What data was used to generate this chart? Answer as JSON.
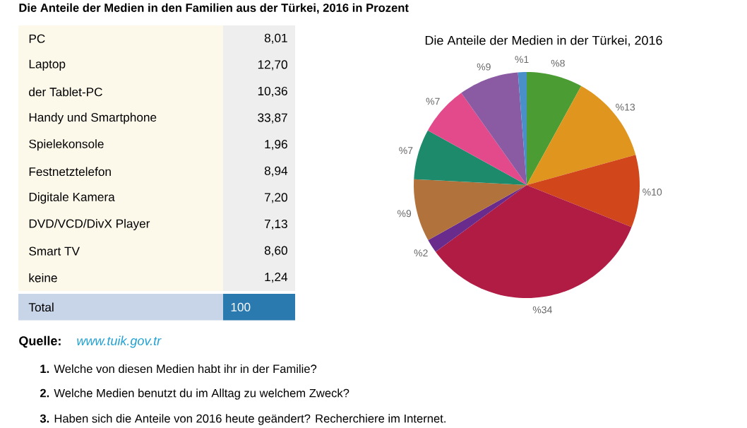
{
  "chart_data": [
    {
      "type": "other",
      "title": "Die Anteile der Medien in den Familien aus der Türkei, 2016 in Prozent",
      "annotations": [
        "PC",
        "8,01",
        "Laptop",
        "12,70",
        "der Tablet-PC",
        "10,36",
        "Handy und Smartphone",
        "33,87",
        "Spielekonsole",
        "1,96",
        "Festnetztelefon",
        "8,94",
        "Digitale Kamera",
        "7,20",
        "DVD/VCD/DivX Player",
        "7,13",
        "Smart TV",
        "8,60",
        "keine",
        "1,24",
        "Total",
        "100",
        "Quelle:",
        "www.tuik.gov.tr",
        "**1.** Welche von diesen Medien habt ihr in der Familie?",
        "**2.** Welche Medien benutzt du im Alltag zu welchem Zweck?",
        "**3.** Haben sich die Anteile von 2016 heute geändert? Recherchiere im Internet."
      ]
    },
    {
      "type": "pie",
      "title": "Die Anteile der Medien in der Türkei, 2016",
      "categories": [
        null,
        null,
        null,
        null,
        null,
        null,
        null,
        null,
        null,
        null
      ],
      "values": [
        8.01,
        12.7,
        10.36,
        33.87,
        1.96,
        8.94,
        7.2,
        7.13,
        8.6,
        1.24
      ],
      "colors": [
        "#4c9c34",
        "#e0961e",
        "#d2461c",
        "#b01c44",
        "#6a2c8c",
        "#b2723c",
        "#1e8a6c",
        "#e24a8c",
        "#8a5aa2",
        "#4a90c8"
      ],
      "value_labels": [
        "%8",
        "%13",
        "%10",
        "%34",
        "%2",
        "%9",
        "%7",
        "%7",
        "%9",
        "%1"
      ]
    }
  ]
}
